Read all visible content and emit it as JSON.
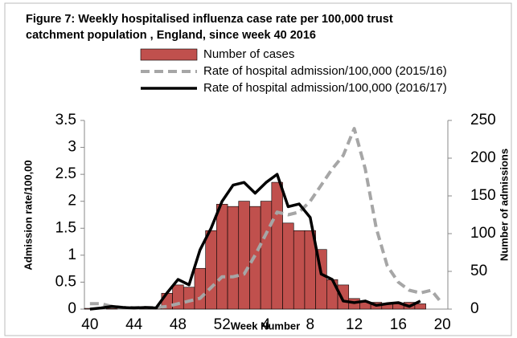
{
  "chart_data": {
    "type": "bar",
    "title": "Figure 7: Weekly hospitalised influenza case rate per 100,000 trust catchment population , England, since week 40 2016",
    "title_lines": [
      "Figure 7: Weekly hospitalised influenza case rate per 100,000 trust",
      "catchment population , England, since week 40 2016"
    ],
    "x_label": "Week Number",
    "y_label": "Admission rate/100,00",
    "y2_label": "Number of admissions",
    "categories": [
      40,
      null,
      null,
      null,
      44,
      null,
      null,
      null,
      48,
      null,
      null,
      null,
      52,
      null,
      null,
      null,
      4,
      null,
      null,
      null,
      8,
      null,
      null,
      null,
      12,
      null,
      null,
      null,
      16,
      null,
      null,
      null,
      20
    ],
    "ylim": [
      0,
      3.5
    ],
    "yticks": [
      0,
      0.5,
      1,
      1.5,
      2,
      2.5,
      3,
      3.5
    ],
    "y2lim": [
      0,
      250
    ],
    "y2ticks": [
      0,
      50,
      100,
      150,
      200,
      250
    ],
    "series": [
      {
        "name": "Number of cases",
        "type": "bar",
        "axis": "y2",
        "color": "#c0504d",
        "values": [
          1,
          0,
          1,
          0,
          0,
          1,
          1,
          21,
          32,
          29,
          54,
          104,
          139,
          136,
          143,
          136,
          143,
          168,
          114,
          104,
          104,
          79,
          39,
          32,
          14,
          9,
          9,
          7,
          7,
          9,
          7,
          0,
          0
        ]
      },
      {
        "name": "Rate of hospital admission/100,000 (2015/16)",
        "type": "line",
        "dashed": true,
        "color": "#a6a6a6",
        "values": [
          0.1,
          0.1,
          0.05,
          0.03,
          0.03,
          0.03,
          0.03,
          0.05,
          0.1,
          0.15,
          0.2,
          0.4,
          0.6,
          0.6,
          0.65,
          1.0,
          1.4,
          1.8,
          1.75,
          1.8,
          2.0,
          2.3,
          2.6,
          2.85,
          3.35,
          2.6,
          1.5,
          0.8,
          0.5,
          0.35,
          0.3,
          0.35,
          0.1
        ]
      },
      {
        "name": "Rate of hospital admission/100,000 (2016/17)",
        "type": "line",
        "color": "#000000",
        "values": [
          0,
          0.02,
          0.05,
          0.03,
          0.02,
          0.03,
          0.02,
          0.3,
          0.55,
          0.45,
          1.1,
          1.5,
          2.0,
          2.3,
          2.35,
          2.15,
          2.35,
          2.5,
          1.9,
          1.95,
          1.7,
          0.65,
          0.55,
          0.15,
          0.12,
          0.15,
          0.07,
          0.1,
          0.12,
          0.05,
          0.15,
          null,
          null
        ]
      }
    ]
  }
}
